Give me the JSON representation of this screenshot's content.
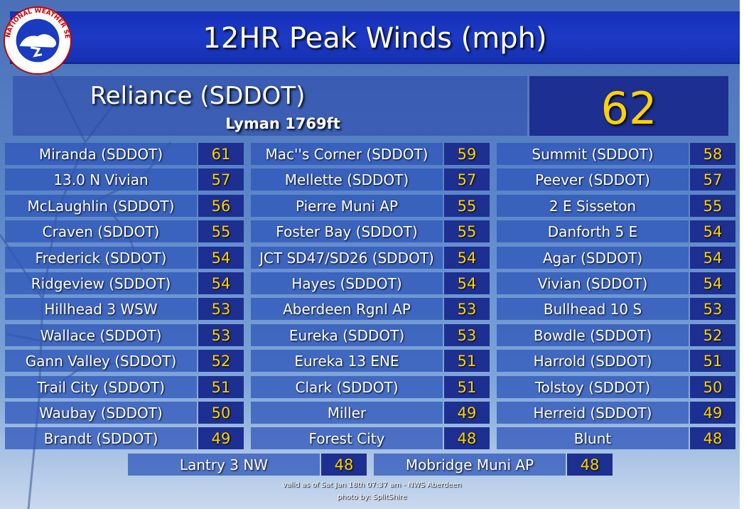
{
  "title": "12HR Peak Winds (mph)",
  "logo": {
    "icon": "nws-logo-icon",
    "text": "NATIONAL WEATHER SERVICE"
  },
  "feature": {
    "name": "Reliance (SDDOT)",
    "sub": "Lyman 1769ft",
    "value": "62"
  },
  "rows": [
    [
      {
        "name": "Miranda (SDDOT)",
        "value": "61"
      },
      {
        "name": "Mac''s Corner (SDDOT)",
        "value": "59"
      },
      {
        "name": "Summit (SDDOT)",
        "value": "58"
      }
    ],
    [
      {
        "name": "13.0 N Vivian",
        "value": "57"
      },
      {
        "name": "Mellette (SDDOT)",
        "value": "57"
      },
      {
        "name": "Peever (SDDOT)",
        "value": "57"
      }
    ],
    [
      {
        "name": "McLaughlin (SDDOT)",
        "value": "56"
      },
      {
        "name": "Pierre Muni AP",
        "value": "55"
      },
      {
        "name": "2 E Sisseton",
        "value": "55"
      }
    ],
    [
      {
        "name": "Craven (SDDOT)",
        "value": "55"
      },
      {
        "name": "Foster Bay (SDDOT)",
        "value": "55"
      },
      {
        "name": "Danforth 5 E",
        "value": "54"
      }
    ],
    [
      {
        "name": "Frederick (SDDOT)",
        "value": "54"
      },
      {
        "name": "JCT SD47/SD26 (SDDOT)",
        "value": "54"
      },
      {
        "name": "Agar (SDDOT)",
        "value": "54"
      }
    ],
    [
      {
        "name": "Ridgeview (SDDOT)",
        "value": "54"
      },
      {
        "name": "Hayes (SDDOT)",
        "value": "54"
      },
      {
        "name": "Vivian (SDDOT)",
        "value": "54"
      }
    ],
    [
      {
        "name": "Hillhead 3 WSW",
        "value": "53"
      },
      {
        "name": "Aberdeen Rgnl AP",
        "value": "53"
      },
      {
        "name": "Bullhead 10 S",
        "value": "53"
      }
    ],
    [
      {
        "name": "Wallace (SDDOT)",
        "value": "53"
      },
      {
        "name": "Eureka (SDDOT)",
        "value": "53"
      },
      {
        "name": "Bowdle (SDDOT)",
        "value": "52"
      }
    ],
    [
      {
        "name": "Gann Valley (SDDOT)",
        "value": "52"
      },
      {
        "name": "Eureka 13 ENE",
        "value": "51"
      },
      {
        "name": "Harrold (SDDOT)",
        "value": "51"
      }
    ],
    [
      {
        "name": "Trail City (SDDOT)",
        "value": "51"
      },
      {
        "name": "Clark (SDDOT)",
        "value": "51"
      },
      {
        "name": "Tolstoy (SDDOT)",
        "value": "50"
      }
    ],
    [
      {
        "name": "Waubay (SDDOT)",
        "value": "50"
      },
      {
        "name": "Miller",
        "value": "49"
      },
      {
        "name": "Herreid (SDDOT)",
        "value": "49"
      }
    ],
    [
      {
        "name": "Brandt (SDDOT)",
        "value": "49"
      },
      {
        "name": "Forest City",
        "value": "48"
      },
      {
        "name": "Blunt",
        "value": "48"
      }
    ]
  ],
  "bottom_row": [
    {
      "name": "Lantry 3 NW",
      "value": "48"
    },
    {
      "name": "Mobridge Muni AP",
      "value": "48"
    }
  ],
  "footer": {
    "valid": "valid as of Sat Jan 18th 07:37 am - NWS Aberdeen",
    "photo": "photo by: SplitShire"
  }
}
